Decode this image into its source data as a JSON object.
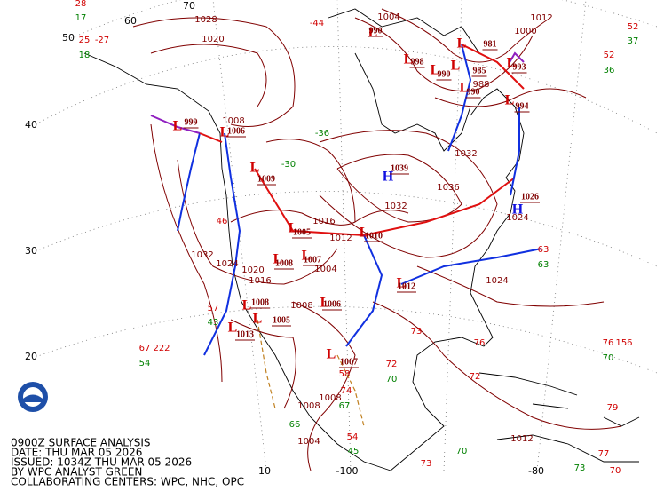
{
  "info": [
    "0900Z SURFACE ANALYSIS",
    "DATE: THU MAR 05 2026",
    "ISSUED: 1034Z THU MAR 05 2026",
    "BY WPC ANALYST GREEN",
    "COLLABORATING CENTERS: WPC, NHC, OPC"
  ],
  "latitude_labels": [
    "70",
    "60",
    "50",
    "40",
    "30",
    "20"
  ],
  "longitude_labels": [
    "10",
    "-100",
    "-80"
  ],
  "pressure_centers": [
    {
      "symbol": "L",
      "value": "999"
    },
    {
      "symbol": "L",
      "value": "1006"
    },
    {
      "symbol": "L",
      "value": "1009"
    },
    {
      "symbol": "L",
      "value": "1005"
    },
    {
      "symbol": "L",
      "value": "1008"
    },
    {
      "symbol": "L",
      "value": "1007"
    },
    {
      "symbol": "L",
      "value": "1010"
    },
    {
      "symbol": "L",
      "value": "1012"
    },
    {
      "symbol": "L",
      "value": "1006"
    },
    {
      "symbol": "L",
      "value": "1008"
    },
    {
      "symbol": "L",
      "value": "1013"
    },
    {
      "symbol": "L",
      "value": "1005"
    },
    {
      "symbol": "L",
      "value": "1007"
    },
    {
      "symbol": "H",
      "value": "1039"
    },
    {
      "symbol": "H",
      "value": "1026"
    },
    {
      "symbol": "L",
      "value": "990"
    },
    {
      "symbol": "L",
      "value": "998"
    },
    {
      "symbol": "L",
      "value": "990"
    },
    {
      "symbol": "L",
      "value": "985"
    },
    {
      "symbol": "L",
      "value": "981"
    },
    {
      "symbol": "L",
      "value": "993"
    },
    {
      "symbol": "L",
      "value": "994"
    },
    {
      "symbol": "L",
      "value": "990"
    }
  ],
  "isobar_labels": [
    "1004",
    "1028",
    "1020",
    "1008",
    "1016",
    "1012",
    "1032",
    "1036",
    "1032",
    "1024",
    "1024",
    "1032",
    "1024",
    "1020",
    "1016",
    "1008",
    "1004",
    "1008",
    "1008",
    "1004",
    "1012",
    "1012",
    "1000",
    "988"
  ],
  "station_values": {
    "temperatures": [
      "28",
      "25",
      "-27",
      "67",
      "222",
      "63",
      "52",
      "52",
      "76",
      "156",
      "79",
      "77",
      "70",
      "-44",
      "46",
      "57",
      "73",
      "72",
      "76",
      "72",
      "54",
      "73",
      "58",
      "74"
    ],
    "dewpoints": [
      "17",
      "18",
      "54",
      "63",
      "36",
      "37",
      "70",
      "73",
      "-36",
      "-30",
      "43",
      "70",
      "45",
      "70",
      "66",
      "67"
    ]
  }
}
